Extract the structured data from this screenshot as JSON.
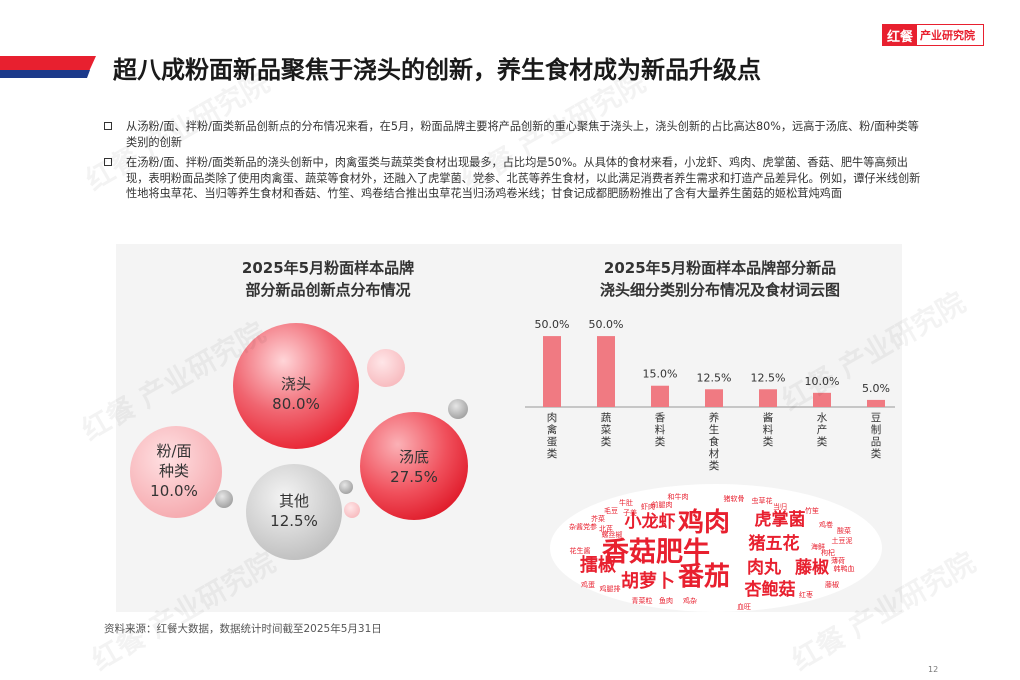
{
  "header": {
    "title": "超八成粉面新品聚焦于浇头的创新，养生食材成为新品升级点",
    "logo_mark": "红餐",
    "logo_text": "产业研究院"
  },
  "bullets": [
    "从汤粉/面、拌粉/面类新品创新点的分布情况来看，在5月，粉面品牌主要将产品创新的重心聚焦于浇头上，浇头创新的占比高达80%，远高于汤底、粉/面种类等类别的创新",
    "在汤粉/面、拌粉/面类新品的浇头创新中，肉禽蛋类与蔬菜类食材出现最多，占比均是50%。从具体的食材来看，小龙虾、鸡肉、虎掌菌、香菇、肥牛等高频出现，表明粉面品类除了使用肉禽蛋、蔬菜等食材外，还融入了虎掌菌、党参、北芪等养生食材，以此满足消费者养生需求和打造产品差异化。例如，谭仔米线创新性地将虫草花、当归等养生食材和香菇、竹笙、鸡卷结合推出虫草花当归汤鸡卷米线；甘食记成都肥肠粉推出了含有大量养生菌菇的姬松茸炖鸡面"
  ],
  "chart_left_title": [
    "2025年5月粉面样本品牌",
    "部分新品创新点分布情况"
  ],
  "chart_right_title": [
    "2025年5月粉面样本品牌部分新品",
    "浇头细分类别分布情况及食材词云图"
  ],
  "chart_data": [
    {
      "type": "bubble",
      "categories": [
        "浇头",
        "汤底",
        "其他",
        "粉/面种类"
      ],
      "values": [
        80.0,
        27.5,
        12.5,
        10.0
      ],
      "labels": {
        "topping": [
          "浇头",
          "80.0%"
        ],
        "soup": [
          "汤底",
          "27.5%"
        ],
        "other": [
          "其他",
          "12.5%"
        ],
        "noodle": [
          "粉/面",
          "种类",
          "10.0%"
        ]
      }
    },
    {
      "type": "bar",
      "categories": [
        "肉禽蛋类",
        "蔬菜类",
        "香料类",
        "养生食材类",
        "酱料类",
        "水产类",
        "豆制品类"
      ],
      "values": [
        50.0,
        50.0,
        15.0,
        12.5,
        12.5,
        10.0,
        5.0
      ],
      "value_labels": [
        "50.0%",
        "50.0%",
        "15.0%",
        "12.5%",
        "12.5%",
        "10.0%",
        "5.0%"
      ],
      "ylim": [
        0,
        55
      ]
    }
  ],
  "wordcloud": {
    "words": [
      {
        "text": "鸡肉",
        "w": 10,
        "color": "#e8202f"
      },
      {
        "text": "香菇肥牛",
        "w": 10,
        "color": "#e8202f"
      },
      {
        "text": "番茄",
        "w": 10,
        "color": "#e8202f"
      },
      {
        "text": "小龙虾",
        "w": 7,
        "color": "#e8202f"
      },
      {
        "text": "虎掌菌",
        "w": 7,
        "color": "#e8202f"
      },
      {
        "text": "猪五花",
        "w": 7,
        "color": "#e8202f"
      },
      {
        "text": "肉丸",
        "w": 7,
        "color": "#e8202f"
      },
      {
        "text": "藤椒",
        "w": 7,
        "color": "#e8202f"
      },
      {
        "text": "擂椒",
        "w": 7,
        "color": "#e8202f"
      },
      {
        "text": "胡萝卜",
        "w": 7,
        "color": "#e8202f"
      },
      {
        "text": "杏鲍菇",
        "w": 7,
        "color": "#e8202f"
      },
      {
        "text": "和牛肉",
        "w": 2,
        "color": "#e8202f"
      },
      {
        "text": "猪软骨",
        "w": 2,
        "color": "#e8202f"
      },
      {
        "text": "牛肚",
        "w": 2,
        "color": "#e8202f"
      },
      {
        "text": "前腿肉",
        "w": 2,
        "color": "#e8202f"
      },
      {
        "text": "虾肉",
        "w": 2,
        "color": "#e8202f"
      },
      {
        "text": "子姜",
        "w": 2,
        "color": "#e8202f"
      },
      {
        "text": "毛豆",
        "w": 2,
        "color": "#e8202f"
      },
      {
        "text": "芥菜",
        "w": 2,
        "color": "#e8202f"
      },
      {
        "text": "党参",
        "w": 2,
        "color": "#e8202f"
      },
      {
        "text": "北芪",
        "w": 2,
        "color": "#e8202f"
      },
      {
        "text": "螺丝椒",
        "w": 2,
        "color": "#e8202f"
      },
      {
        "text": "杂酱",
        "w": 2,
        "color": "#e8202f"
      },
      {
        "text": "花生酱",
        "w": 2,
        "color": "#e8202f"
      },
      {
        "text": "鸡蛋",
        "w": 2,
        "color": "#e8202f"
      },
      {
        "text": "鸡腿排",
        "w": 2,
        "color": "#e8202f"
      },
      {
        "text": "青菜粒",
        "w": 2,
        "color": "#e8202f"
      },
      {
        "text": "鱼肉",
        "w": 2,
        "color": "#e8202f"
      },
      {
        "text": "鸡杂",
        "w": 2,
        "color": "#e8202f"
      },
      {
        "text": "血旺",
        "w": 2,
        "color": "#e8202f"
      },
      {
        "text": "虫草花",
        "w": 2,
        "color": "#e8202f"
      },
      {
        "text": "当归",
        "w": 2,
        "color": "#e8202f"
      },
      {
        "text": "竹笙",
        "w": 2,
        "color": "#e8202f"
      },
      {
        "text": "鸡卷",
        "w": 2,
        "color": "#e8202f"
      },
      {
        "text": "土豆泥",
        "w": 2,
        "color": "#e8202f"
      },
      {
        "text": "枸杞",
        "w": 2,
        "color": "#e8202f"
      },
      {
        "text": "酸菜",
        "w": 2,
        "color": "#e8202f"
      },
      {
        "text": "韩鸭血",
        "w": 2,
        "color": "#e8202f"
      },
      {
        "text": "藤椒",
        "w": 2,
        "color": "#e8202f"
      },
      {
        "text": "薄荷",
        "w": 2,
        "color": "#e8202f"
      },
      {
        "text": "红枣",
        "w": 2,
        "color": "#e8202f"
      },
      {
        "text": "海鲜",
        "w": 2,
        "color": "#e8202f"
      }
    ]
  },
  "colors": {
    "accent": "#e8202f",
    "navy": "#1c3a8a",
    "bar": "#f07a82"
  },
  "footer": {
    "source": "资料来源：红餐大数据，数据统计时间截至2025年5月31日",
    "page": "12"
  },
  "watermark_text": "红餐 产业研究院"
}
